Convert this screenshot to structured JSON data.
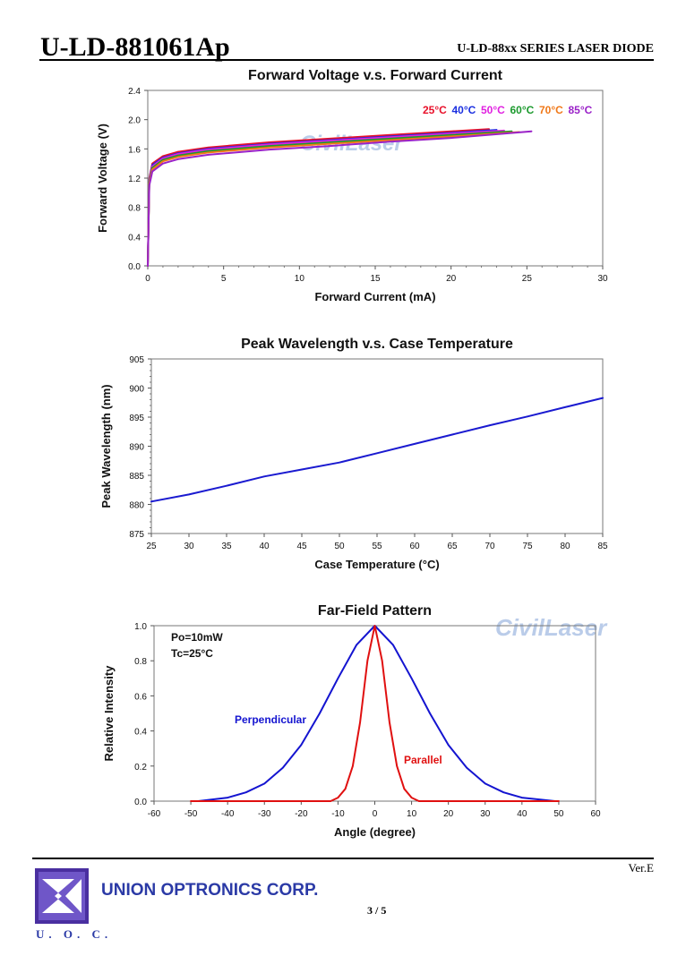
{
  "header": {
    "part_number": "U-LD-881061Ap",
    "series": "U-LD-88xx SERIES LASER DIODE"
  },
  "watermark": "CivilLaser",
  "footer": {
    "version": "Ver.E",
    "company": "UNION OPTRONICS CORP.",
    "page": "3 / 5",
    "logo_text": "U. O. C."
  },
  "chart_data": [
    {
      "type": "line",
      "title": "Forward Voltage v.s. Forward Current",
      "xlabel": "Forward Current (mA)",
      "ylabel": "Forward Voltage (V)",
      "xlim": [
        0,
        30
      ],
      "ylim": [
        0,
        2.4
      ],
      "xticks": [
        0,
        5,
        10,
        15,
        20,
        25,
        30
      ],
      "yticks": [
        0.0,
        0.4,
        0.8,
        1.2,
        1.6,
        2.0,
        2.4
      ],
      "ytick_labels": [
        "0.0",
        "0.4",
        "0.8",
        "1.2",
        "1.6",
        "2.0",
        "2.4"
      ],
      "legend_position": "top-right",
      "series": [
        {
          "name": "25°C",
          "color": "#e8102a",
          "x": [
            0,
            0.1,
            0.3,
            1,
            2,
            4,
            8,
            12,
            16,
            20,
            22.5
          ],
          "y": [
            0,
            1.2,
            1.4,
            1.5,
            1.56,
            1.62,
            1.69,
            1.74,
            1.79,
            1.84,
            1.87
          ]
        },
        {
          "name": "40°C",
          "color": "#1a2fe0",
          "x": [
            0,
            0.1,
            0.3,
            1,
            2,
            4,
            8,
            12,
            16,
            20,
            23.0
          ],
          "y": [
            0,
            1.18,
            1.38,
            1.48,
            1.54,
            1.6,
            1.67,
            1.72,
            1.77,
            1.82,
            1.86
          ]
        },
        {
          "name": "50°C",
          "color": "#e020e0",
          "x": [
            0,
            0.1,
            0.3,
            1,
            2,
            4,
            8,
            12,
            16,
            20,
            23.5
          ],
          "y": [
            0,
            1.17,
            1.36,
            1.47,
            1.53,
            1.59,
            1.66,
            1.71,
            1.76,
            1.81,
            1.85
          ]
        },
        {
          "name": "60°C",
          "color": "#1c9a2e",
          "x": [
            0,
            0.1,
            0.3,
            1,
            2,
            4,
            8,
            12,
            16,
            20,
            24.0
          ],
          "y": [
            0,
            1.15,
            1.34,
            1.45,
            1.51,
            1.57,
            1.64,
            1.69,
            1.74,
            1.79,
            1.84
          ]
        },
        {
          "name": "70°C",
          "color": "#f07818",
          "x": [
            0,
            0.1,
            0.3,
            1,
            2,
            4,
            8,
            12,
            16,
            20,
            24.5
          ],
          "y": [
            0,
            1.13,
            1.32,
            1.43,
            1.49,
            1.55,
            1.62,
            1.67,
            1.72,
            1.77,
            1.83
          ]
        },
        {
          "name": "85°C",
          "color": "#9a22c8",
          "x": [
            0,
            0.1,
            0.3,
            1,
            2,
            4,
            8,
            12,
            16,
            20,
            25.3
          ],
          "y": [
            0,
            1.1,
            1.29,
            1.4,
            1.46,
            1.52,
            1.59,
            1.64,
            1.7,
            1.75,
            1.84
          ]
        }
      ]
    },
    {
      "type": "line",
      "title": "Peak Wavelength v.s. Case Temperature",
      "xlabel": "Case Temperature (°C)",
      "ylabel": "Peak Wavelength (nm)",
      "xlim": [
        25,
        85
      ],
      "ylim": [
        875,
        905
      ],
      "xticks": [
        25,
        30,
        35,
        40,
        45,
        50,
        55,
        60,
        65,
        70,
        75,
        80,
        85
      ],
      "yticks": [
        875,
        880,
        885,
        890,
        895,
        900,
        905
      ],
      "series": [
        {
          "color": "#1a1ad0",
          "x": [
            25,
            30,
            35,
            40,
            45,
            50,
            55,
            60,
            65,
            70,
            75,
            80,
            85
          ],
          "y": [
            880.5,
            881.7,
            883.2,
            884.8,
            886.0,
            887.2,
            888.8,
            890.4,
            892.0,
            893.6,
            895.1,
            896.7,
            898.3
          ]
        }
      ]
    },
    {
      "type": "line",
      "title": "Far-Field Pattern",
      "xlabel": "Angle (degree)",
      "ylabel": "Relative Intensity",
      "xlim": [
        -60,
        60
      ],
      "ylim": [
        0,
        1.0
      ],
      "xticks": [
        -60,
        -50,
        -40,
        -30,
        -20,
        -10,
        0,
        10,
        20,
        30,
        40,
        50,
        60
      ],
      "yticks": [
        0.0,
        0.2,
        0.4,
        0.6,
        0.8,
        1.0
      ],
      "ytick_labels": [
        "0.0",
        "0.2",
        "0.4",
        "0.6",
        "0.8",
        "1.0"
      ],
      "annotations": [
        "Po=10mW",
        "Tc=25°C"
      ],
      "series": [
        {
          "name": "Perpendicular",
          "color": "#1414d0",
          "x": [
            -48,
            -40,
            -35,
            -30,
            -25,
            -20,
            -15,
            -10,
            -5,
            0,
            5,
            10,
            15,
            20,
            25,
            30,
            35,
            40,
            49
          ],
          "y": [
            0.0,
            0.02,
            0.05,
            0.1,
            0.19,
            0.32,
            0.5,
            0.7,
            0.89,
            1.0,
            0.89,
            0.7,
            0.5,
            0.32,
            0.19,
            0.1,
            0.05,
            0.02,
            0.0
          ]
        },
        {
          "name": "Parallel",
          "color": "#e01010",
          "x": [
            -50,
            -12,
            -10,
            -8,
            -6,
            -4,
            -2,
            0,
            2,
            4,
            6,
            8,
            10,
            12,
            50
          ],
          "y": [
            0.0,
            0.0,
            0.02,
            0.07,
            0.2,
            0.45,
            0.8,
            1.0,
            0.8,
            0.45,
            0.2,
            0.07,
            0.02,
            0.0,
            0.0
          ]
        }
      ]
    }
  ]
}
